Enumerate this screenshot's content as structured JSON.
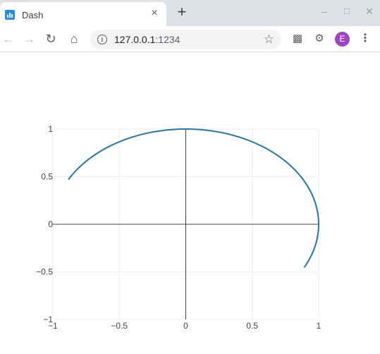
{
  "browser": {
    "tab_title": "Dash",
    "tab_close_glyph": "×",
    "new_tab_glyph": "+",
    "url_host": "127.0.0.1",
    "url_port": ":1234",
    "avatar_letter": "E",
    "avatar_color": "#a142c9",
    "icons": [
      "back-arrow-icon",
      "forward-arrow-icon",
      "reload-icon",
      "home-icon",
      "info-icon",
      "star-icon",
      "cast-icon",
      "extensions-icon",
      "menu-icon"
    ]
  },
  "chart_data": {
    "type": "line",
    "title": "",
    "xlabel": "",
    "ylabel": "",
    "xlim": [
      -1,
      1
    ],
    "ylim": [
      -1,
      1
    ],
    "grid": true,
    "zeroline": true,
    "line_color": "#1f77b4",
    "x_ticks": [
      -1,
      -0.5,
      0,
      0.5,
      1
    ],
    "x_tick_labels": [
      "−1",
      "−0.5",
      "0",
      "0.5",
      "1"
    ],
    "y_ticks": [
      -1,
      -0.5,
      0,
      0.5,
      1
    ],
    "y_tick_labels": [
      "−1",
      "−0.5",
      "0",
      "0.5",
      "1"
    ],
    "series": [
      {
        "theta_start_deg": 152,
        "theta_end_deg": -27,
        "radius": 1
      }
    ]
  }
}
